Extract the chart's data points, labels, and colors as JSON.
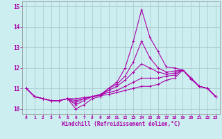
{
  "xlabel": "Windchill (Refroidissement éolien,°C)",
  "background_color": "#cceef0",
  "grid_color": "#aacccc",
  "line_color": "#aa00aa",
  "spine_color": "#888888",
  "xlim": [
    -0.5,
    23.5
  ],
  "ylim": [
    9.75,
    15.25
  ],
  "xticks": [
    0,
    1,
    2,
    3,
    4,
    5,
    6,
    7,
    8,
    9,
    10,
    11,
    12,
    13,
    14,
    15,
    16,
    17,
    18,
    19,
    20,
    21,
    22,
    23
  ],
  "yticks": [
    10,
    11,
    12,
    13,
    14,
    15
  ],
  "lines": [
    [
      11.0,
      10.6,
      10.5,
      10.4,
      10.4,
      10.5,
      10.0,
      10.2,
      10.5,
      10.6,
      11.0,
      11.3,
      12.0,
      13.3,
      14.85,
      13.5,
      12.8,
      12.05,
      12.0,
      11.9,
      11.5,
      11.1,
      11.0,
      10.6
    ],
    [
      11.0,
      10.6,
      10.5,
      10.4,
      10.4,
      10.5,
      10.2,
      10.4,
      10.6,
      10.7,
      11.0,
      11.2,
      11.6,
      12.3,
      13.3,
      12.5,
      12.0,
      11.8,
      11.85,
      11.9,
      11.5,
      11.1,
      11.0,
      10.6
    ],
    [
      11.0,
      10.6,
      10.5,
      10.4,
      10.4,
      10.5,
      10.3,
      10.5,
      10.6,
      10.7,
      10.9,
      11.1,
      11.4,
      11.8,
      12.2,
      12.0,
      11.8,
      11.7,
      11.75,
      11.9,
      11.5,
      11.1,
      11.0,
      10.6
    ],
    [
      11.0,
      10.6,
      10.5,
      10.4,
      10.4,
      10.5,
      10.4,
      10.5,
      10.6,
      10.7,
      10.8,
      10.9,
      11.1,
      11.3,
      11.5,
      11.5,
      11.5,
      11.6,
      11.65,
      11.9,
      11.5,
      11.1,
      11.0,
      10.6
    ],
    [
      11.0,
      10.6,
      10.5,
      10.4,
      10.4,
      10.5,
      10.5,
      10.55,
      10.6,
      10.65,
      10.7,
      10.8,
      10.9,
      11.0,
      11.1,
      11.1,
      11.2,
      11.4,
      11.5,
      11.9,
      11.45,
      11.1,
      11.0,
      10.6
    ]
  ],
  "marker": "+",
  "marker_size": 3,
  "linewidth": 0.8
}
